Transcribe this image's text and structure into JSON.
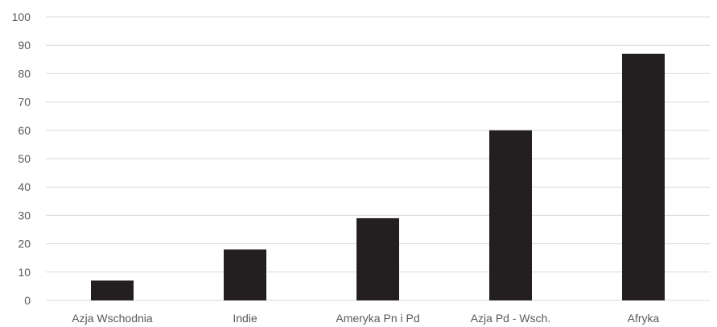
{
  "chart_data": {
    "type": "bar",
    "categories": [
      "Azja Wschodnia",
      "Indie",
      "Ameryka Pn i Pd",
      "Azja Pd - Wsch.",
      "Afryka"
    ],
    "values": [
      7,
      18,
      29,
      60,
      87
    ],
    "title": "",
    "xlabel": "",
    "ylabel": "",
    "ylim": [
      0,
      100
    ],
    "yticks": [
      0,
      10,
      20,
      30,
      40,
      50,
      60,
      70,
      80,
      90,
      100
    ],
    "grid": true,
    "legend": "none",
    "colors": {
      "bar": "#231f20",
      "grid": "#d9d9d9",
      "text": "#595959"
    }
  }
}
